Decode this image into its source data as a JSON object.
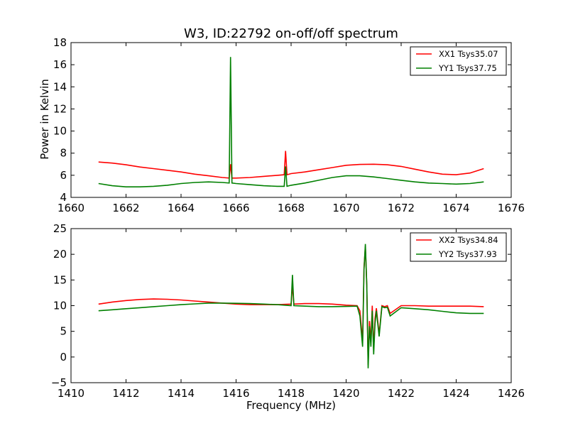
{
  "chart_data": [
    {
      "type": "line",
      "title": "W3, ID:22792 on-off/off spectrum",
      "xlabel": "",
      "ylabel": "Power in Kelvin",
      "xlim": [
        1660,
        1676
      ],
      "ylim": [
        4,
        18
      ],
      "xticks": [
        1660,
        1662,
        1664,
        1666,
        1668,
        1670,
        1672,
        1674,
        1676
      ],
      "yticks": [
        4,
        6,
        8,
        10,
        12,
        14,
        16,
        18
      ],
      "legend_position": "top-right",
      "series": [
        {
          "name": "XX1 Tsys35.07",
          "color": "#ff0000",
          "x": [
            1661.0,
            1661.5,
            1662.0,
            1662.5,
            1663.0,
            1663.5,
            1664.0,
            1664.5,
            1665.0,
            1665.5,
            1665.75,
            1665.8,
            1665.85,
            1666.0,
            1666.5,
            1667.0,
            1667.5,
            1667.75,
            1667.8,
            1667.85,
            1668.0,
            1668.5,
            1669.0,
            1669.5,
            1670.0,
            1670.5,
            1671.0,
            1671.5,
            1672.0,
            1672.5,
            1673.0,
            1673.5,
            1674.0,
            1674.5,
            1675.0
          ],
          "y": [
            7.2,
            7.1,
            6.95,
            6.75,
            6.6,
            6.45,
            6.3,
            6.1,
            5.95,
            5.8,
            5.75,
            7.0,
            5.75,
            5.75,
            5.8,
            5.9,
            6.0,
            6.05,
            8.2,
            6.05,
            6.15,
            6.3,
            6.5,
            6.7,
            6.9,
            6.98,
            7.0,
            6.95,
            6.8,
            6.55,
            6.3,
            6.1,
            6.05,
            6.2,
            6.6
          ]
        },
        {
          "name": "YY1 Tsys37.75",
          "color": "#008000",
          "x": [
            1661.0,
            1661.5,
            1662.0,
            1662.5,
            1663.0,
            1663.5,
            1664.0,
            1664.5,
            1665.0,
            1665.5,
            1665.75,
            1665.8,
            1665.85,
            1666.0,
            1666.5,
            1667.0,
            1667.5,
            1667.75,
            1667.8,
            1667.85,
            1668.0,
            1668.5,
            1669.0,
            1669.5,
            1670.0,
            1670.5,
            1671.0,
            1671.5,
            1672.0,
            1672.5,
            1673.0,
            1673.5,
            1674.0,
            1674.5,
            1675.0
          ],
          "y": [
            5.25,
            5.05,
            4.95,
            4.95,
            5.0,
            5.1,
            5.25,
            5.35,
            5.4,
            5.35,
            5.3,
            16.7,
            5.3,
            5.25,
            5.15,
            5.05,
            5.0,
            5.0,
            6.8,
            5.0,
            5.1,
            5.3,
            5.55,
            5.8,
            5.95,
            5.95,
            5.85,
            5.7,
            5.55,
            5.4,
            5.3,
            5.25,
            5.2,
            5.25,
            5.4
          ]
        }
      ]
    },
    {
      "type": "line",
      "title": "",
      "xlabel": "Frequency (MHz)",
      "ylabel": "",
      "xlim": [
        1410,
        1426
      ],
      "ylim": [
        -5,
        25
      ],
      "xticks": [
        1410,
        1412,
        1414,
        1416,
        1418,
        1420,
        1422,
        1424,
        1426
      ],
      "yticks": [
        -5,
        0,
        5,
        10,
        15,
        20,
        25
      ],
      "ytick_labels": [
        "−5",
        "0",
        "5",
        "10",
        "15",
        "20",
        "25"
      ],
      "legend_position": "top-right",
      "series": [
        {
          "name": "XX2 Tsys34.84",
          "color": "#ff0000",
          "x": [
            1411.0,
            1411.5,
            1412.0,
            1412.5,
            1413.0,
            1413.5,
            1414.0,
            1414.5,
            1415.0,
            1415.5,
            1416.0,
            1416.5,
            1417.0,
            1417.5,
            1418.0,
            1418.05,
            1418.1,
            1418.5,
            1419.0,
            1419.5,
            1420.0,
            1420.4,
            1420.5,
            1420.6,
            1420.65,
            1420.7,
            1420.75,
            1420.8,
            1420.85,
            1420.9,
            1420.95,
            1421.0,
            1421.05,
            1421.1,
            1421.2,
            1421.3,
            1421.4,
            1421.5,
            1421.6,
            1422.0,
            1422.5,
            1423.0,
            1423.5,
            1424.0,
            1424.5,
            1425.0
          ],
          "y": [
            10.3,
            10.7,
            11.0,
            11.2,
            11.3,
            11.25,
            11.1,
            10.9,
            10.7,
            10.5,
            10.3,
            10.2,
            10.2,
            10.2,
            10.3,
            14.0,
            10.3,
            10.4,
            10.4,
            10.3,
            10.1,
            10.0,
            9.0,
            3.0,
            17.5,
            21.5,
            14.0,
            -1.5,
            7.0,
            3.0,
            10.0,
            1.5,
            7.5,
            9.5,
            4.5,
            10.0,
            9.8,
            10.0,
            8.5,
            10.0,
            10.0,
            9.9,
            9.9,
            9.9,
            9.9,
            9.8
          ]
        },
        {
          "name": "YY2 Tsys37.93",
          "color": "#008000",
          "x": [
            1411.0,
            1411.5,
            1412.0,
            1412.5,
            1413.0,
            1413.5,
            1414.0,
            1414.5,
            1415.0,
            1415.5,
            1416.0,
            1416.5,
            1417.0,
            1417.5,
            1418.0,
            1418.05,
            1418.1,
            1418.5,
            1419.0,
            1419.5,
            1420.0,
            1420.4,
            1420.5,
            1420.6,
            1420.65,
            1420.7,
            1420.75,
            1420.8,
            1420.85,
            1420.9,
            1420.95,
            1421.0,
            1421.05,
            1421.1,
            1421.2,
            1421.3,
            1421.4,
            1421.5,
            1421.6,
            1422.0,
            1422.5,
            1423.0,
            1423.5,
            1424.0,
            1424.5,
            1425.0
          ],
          "y": [
            9.0,
            9.2,
            9.4,
            9.6,
            9.8,
            10.0,
            10.2,
            10.35,
            10.5,
            10.5,
            10.45,
            10.4,
            10.3,
            10.2,
            10.0,
            16.0,
            10.0,
            9.9,
            9.8,
            9.8,
            9.85,
            9.9,
            8.0,
            2.0,
            17.0,
            22.0,
            14.0,
            -2.2,
            6.0,
            2.0,
            9.0,
            0.5,
            6.5,
            9.0,
            4.0,
            9.8,
            9.6,
            9.7,
            8.0,
            9.6,
            9.4,
            9.2,
            8.9,
            8.6,
            8.5,
            8.5
          ]
        }
      ]
    }
  ]
}
